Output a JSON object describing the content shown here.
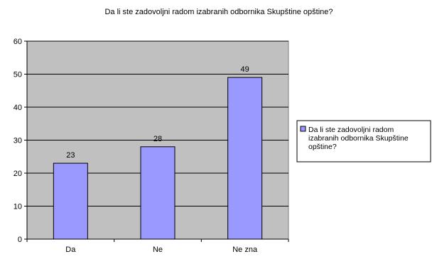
{
  "chart_data": {
    "type": "bar",
    "title": "Da li ste zadovoljni radom izabranih odbornika Skupštine opštine?",
    "categories": [
      "Da",
      "Ne",
      "Ne zna"
    ],
    "series": [
      {
        "name": "Da li ste zadovoljni radom izabranih odbornika Skupštine opštine?",
        "values": [
          23,
          28,
          49
        ]
      }
    ],
    "data_labels": [
      "23",
      "28",
      "49"
    ],
    "y_ticks": [
      "0",
      "10",
      "20",
      "30",
      "40",
      "50",
      "60"
    ],
    "ylim": [
      0,
      60
    ],
    "grid": true,
    "legend_position": "right",
    "legend_lines": [
      "Da li ste zadovoljni radom",
      "izabranih odbornika Skupštine",
      "opštine?"
    ],
    "colors": {
      "plot_background": "#c0c0c0",
      "bar_fill": "#9999ff",
      "bar_stroke": "#000000",
      "gridline": "#000000"
    }
  }
}
